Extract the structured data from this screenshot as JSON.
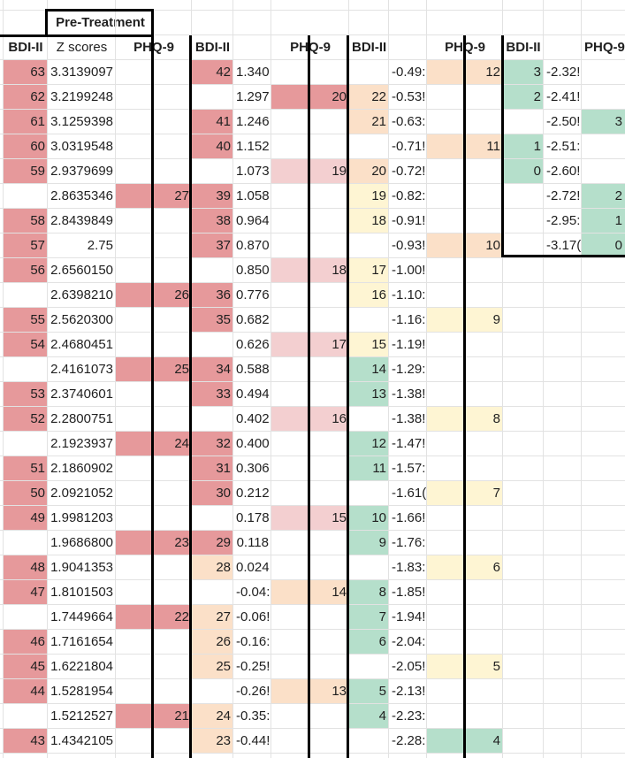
{
  "title": "Pre-Treatment",
  "headers": [
    "BDI-II",
    "Z scores",
    "PHQ-9",
    "BDI-II",
    "",
    "PHQ-9",
    "BDI-II",
    "",
    "PHQ-9",
    "BDI-II",
    "",
    "PHQ-9"
  ],
  "colors": {
    "dark_red": "#e6999b",
    "light_red": "#f3cfd0",
    "orange": "#fbe0c8",
    "yellow": "#fef5d3",
    "green": "#b5dfcb",
    "gridline": "#e2e2e2",
    "border": "#000000"
  },
  "rows": [
    [
      [
        "63",
        "r"
      ],
      [
        "3.3139097"
      ],
      [
        "",
        ""
      ],
      [
        "42",
        "r"
      ],
      [
        "1.340"
      ],
      [
        "",
        ""
      ],
      [
        "",
        ""
      ],
      [
        "-0.49:"
      ],
      [
        "12",
        "o"
      ],
      [
        "3",
        "g"
      ],
      [
        "-2.32!"
      ],
      [
        "",
        ""
      ]
    ],
    [
      [
        "62",
        "r"
      ],
      [
        "3.2199248"
      ],
      [
        "",
        ""
      ],
      [
        "",
        ""
      ],
      [
        "1.297"
      ],
      [
        "20",
        "r"
      ],
      [
        "22",
        "o"
      ],
      [
        "-0.53!"
      ],
      [
        "",
        ""
      ],
      [
        "2",
        "g"
      ],
      [
        "-2.41!"
      ],
      [
        "",
        ""
      ]
    ],
    [
      [
        "61",
        "r"
      ],
      [
        "3.1259398"
      ],
      [
        "",
        ""
      ],
      [
        "41",
        "r"
      ],
      [
        "1.246"
      ],
      [
        "",
        ""
      ],
      [
        "21",
        "o"
      ],
      [
        "-0.63:"
      ],
      [
        "",
        ""
      ],
      [
        "",
        ""
      ],
      [
        "-2.50!"
      ],
      [
        "3",
        "g"
      ]
    ],
    [
      [
        "60",
        "r"
      ],
      [
        "3.0319548"
      ],
      [
        "",
        ""
      ],
      [
        "40",
        "r"
      ],
      [
        "1.152"
      ],
      [
        "",
        ""
      ],
      [
        "",
        ""
      ],
      [
        "-0.71!"
      ],
      [
        "11",
        "o"
      ],
      [
        "1",
        "g"
      ],
      [
        "-2.51:"
      ],
      [
        "",
        ""
      ]
    ],
    [
      [
        "59",
        "r"
      ],
      [
        "2.9379699"
      ],
      [
        "",
        ""
      ],
      [
        "",
        ""
      ],
      [
        "1.073"
      ],
      [
        "19",
        "l"
      ],
      [
        "20",
        "o"
      ],
      [
        "-0.72!"
      ],
      [
        "",
        ""
      ],
      [
        "0",
        "g"
      ],
      [
        "-2.60!"
      ],
      [
        "",
        ""
      ]
    ],
    [
      [
        "",
        ""
      ],
      [
        "2.8635346"
      ],
      [
        "27",
        "r"
      ],
      [
        "39",
        "r"
      ],
      [
        "1.058"
      ],
      [
        "",
        ""
      ],
      [
        "19",
        "y"
      ],
      [
        "-0.82:"
      ],
      [
        "",
        ""
      ],
      [
        "",
        ""
      ],
      [
        "-2.72!"
      ],
      [
        "2",
        "g"
      ]
    ],
    [
      [
        "58",
        "r"
      ],
      [
        "2.8439849"
      ],
      [
        "",
        ""
      ],
      [
        "38",
        "r"
      ],
      [
        "0.964"
      ],
      [
        "",
        ""
      ],
      [
        "18",
        "y"
      ],
      [
        "-0.91!"
      ],
      [
        "",
        ""
      ],
      [
        "",
        ""
      ],
      [
        "-2.95:"
      ],
      [
        "1",
        "g"
      ]
    ],
    [
      [
        "57",
        "r"
      ],
      [
        "2.75"
      ],
      [
        "",
        ""
      ],
      [
        "37",
        "r"
      ],
      [
        "0.870"
      ],
      [
        "",
        ""
      ],
      [
        "",
        ""
      ],
      [
        "-0.93!"
      ],
      [
        "10",
        "o"
      ],
      [
        "",
        ""
      ],
      [
        "-3.17("
      ],
      [
        "0",
        "g"
      ]
    ],
    [
      [
        "56",
        "r"
      ],
      [
        "2.6560150"
      ],
      [
        "",
        ""
      ],
      [
        "",
        ""
      ],
      [
        "0.850"
      ],
      [
        "18",
        "l"
      ],
      [
        "17",
        "y"
      ],
      [
        "-1.00!"
      ],
      [
        "",
        ""
      ],
      [
        "",
        ""
      ],
      [
        "",
        ""
      ],
      [
        "",
        ""
      ]
    ],
    [
      [
        "",
        ""
      ],
      [
        "2.6398210"
      ],
      [
        "26",
        "r"
      ],
      [
        "36",
        "r"
      ],
      [
        "0.776"
      ],
      [
        "",
        ""
      ],
      [
        "16",
        "y"
      ],
      [
        "-1.10:"
      ],
      [
        "",
        ""
      ],
      [
        "",
        ""
      ],
      [
        "",
        ""
      ],
      [
        "",
        ""
      ]
    ],
    [
      [
        "55",
        "r"
      ],
      [
        "2.5620300"
      ],
      [
        "",
        ""
      ],
      [
        "35",
        "r"
      ],
      [
        "0.682"
      ],
      [
        "",
        ""
      ],
      [
        "",
        ""
      ],
      [
        "-1.16:"
      ],
      [
        "9",
        "y"
      ],
      [
        "",
        ""
      ],
      [
        "",
        ""
      ],
      [
        "",
        ""
      ]
    ],
    [
      [
        "54",
        "r"
      ],
      [
        "2.4680451"
      ],
      [
        "",
        ""
      ],
      [
        "",
        ""
      ],
      [
        "0.626"
      ],
      [
        "17",
        "l"
      ],
      [
        "15",
        "y"
      ],
      [
        "-1.19!"
      ],
      [
        "",
        ""
      ],
      [
        "",
        ""
      ],
      [
        "",
        ""
      ],
      [
        "",
        ""
      ]
    ],
    [
      [
        "",
        ""
      ],
      [
        "2.4161073"
      ],
      [
        "25",
        "r"
      ],
      [
        "34",
        "r"
      ],
      [
        "0.588"
      ],
      [
        "",
        ""
      ],
      [
        "14",
        "g"
      ],
      [
        "-1.29:"
      ],
      [
        "",
        ""
      ],
      [
        "",
        ""
      ],
      [
        "",
        ""
      ],
      [
        "",
        ""
      ]
    ],
    [
      [
        "53",
        "r"
      ],
      [
        "2.3740601"
      ],
      [
        "",
        ""
      ],
      [
        "33",
        "r"
      ],
      [
        "0.494"
      ],
      [
        "",
        ""
      ],
      [
        "13",
        "g"
      ],
      [
        "-1.38!"
      ],
      [
        "",
        ""
      ],
      [
        "",
        ""
      ],
      [
        "",
        ""
      ],
      [
        "",
        ""
      ]
    ],
    [
      [
        "52",
        "r"
      ],
      [
        "2.2800751"
      ],
      [
        "",
        ""
      ],
      [
        "",
        ""
      ],
      [
        "0.402"
      ],
      [
        "16",
        "l"
      ],
      [
        "",
        ""
      ],
      [
        "-1.38!"
      ],
      [
        "8",
        "y"
      ],
      [
        "",
        ""
      ],
      [
        "",
        ""
      ],
      [
        "",
        ""
      ]
    ],
    [
      [
        "",
        ""
      ],
      [
        "2.1923937"
      ],
      [
        "24",
        "r"
      ],
      [
        "32",
        "r"
      ],
      [
        "0.400"
      ],
      [
        "",
        ""
      ],
      [
        "12",
        "g"
      ],
      [
        "-1.47!"
      ],
      [
        "",
        ""
      ],
      [
        "",
        ""
      ],
      [
        "",
        ""
      ],
      [
        "",
        ""
      ]
    ],
    [
      [
        "51",
        "r"
      ],
      [
        "2.1860902"
      ],
      [
        "",
        ""
      ],
      [
        "31",
        "r"
      ],
      [
        "0.306"
      ],
      [
        "",
        ""
      ],
      [
        "11",
        "g"
      ],
      [
        "-1.57:"
      ],
      [
        "",
        ""
      ],
      [
        "",
        ""
      ],
      [
        "",
        ""
      ],
      [
        "",
        ""
      ]
    ],
    [
      [
        "50",
        "r"
      ],
      [
        "2.0921052"
      ],
      [
        "",
        ""
      ],
      [
        "30",
        "r"
      ],
      [
        "0.212"
      ],
      [
        "",
        ""
      ],
      [
        "",
        ""
      ],
      [
        "-1.61("
      ],
      [
        "7",
        "y"
      ],
      [
        "",
        ""
      ],
      [
        "",
        ""
      ],
      [
        "",
        ""
      ]
    ],
    [
      [
        "49",
        "r"
      ],
      [
        "1.9981203"
      ],
      [
        "",
        ""
      ],
      [
        "",
        ""
      ],
      [
        "0.178"
      ],
      [
        "15",
        "l"
      ],
      [
        "10",
        "g"
      ],
      [
        "-1.66!"
      ],
      [
        "",
        ""
      ],
      [
        "",
        ""
      ],
      [
        "",
        ""
      ],
      [
        "",
        ""
      ]
    ],
    [
      [
        "",
        ""
      ],
      [
        "1.9686800"
      ],
      [
        "23",
        "r"
      ],
      [
        "29",
        "r"
      ],
      [
        "0.118"
      ],
      [
        "",
        ""
      ],
      [
        "9",
        "g"
      ],
      [
        "-1.76:"
      ],
      [
        "",
        ""
      ],
      [
        "",
        ""
      ],
      [
        "",
        ""
      ],
      [
        "",
        ""
      ]
    ],
    [
      [
        "48",
        "r"
      ],
      [
        "1.9041353"
      ],
      [
        "",
        ""
      ],
      [
        "28",
        "o"
      ],
      [
        "0.024"
      ],
      [
        "",
        ""
      ],
      [
        "",
        ""
      ],
      [
        "-1.83:"
      ],
      [
        "6",
        "y"
      ],
      [
        "",
        ""
      ],
      [
        "",
        ""
      ],
      [
        "",
        ""
      ]
    ],
    [
      [
        "47",
        "r"
      ],
      [
        "1.8101503"
      ],
      [
        "",
        ""
      ],
      [
        "",
        ""
      ],
      [
        "-0.04:"
      ],
      [
        "14",
        "o"
      ],
      [
        "8",
        "g"
      ],
      [
        "-1.85!"
      ],
      [
        "",
        ""
      ],
      [
        "",
        ""
      ],
      [
        "",
        ""
      ],
      [
        "",
        ""
      ]
    ],
    [
      [
        "",
        ""
      ],
      [
        "1.7449664"
      ],
      [
        "22",
        "r"
      ],
      [
        "27",
        "o"
      ],
      [
        "-0.06!"
      ],
      [
        "",
        ""
      ],
      [
        "7",
        "g"
      ],
      [
        "-1.94!"
      ],
      [
        "",
        ""
      ],
      [
        "",
        ""
      ],
      [
        "",
        ""
      ],
      [
        "",
        ""
      ]
    ],
    [
      [
        "46",
        "r"
      ],
      [
        "1.7161654"
      ],
      [
        "",
        ""
      ],
      [
        "26",
        "o"
      ],
      [
        "-0.16:"
      ],
      [
        "",
        ""
      ],
      [
        "6",
        "g"
      ],
      [
        "-2.04:"
      ],
      [
        "",
        ""
      ],
      [
        "",
        ""
      ],
      [
        "",
        ""
      ],
      [
        "",
        ""
      ]
    ],
    [
      [
        "45",
        "r"
      ],
      [
        "1.6221804"
      ],
      [
        "",
        ""
      ],
      [
        "25",
        "o"
      ],
      [
        "-0.25!"
      ],
      [
        "",
        ""
      ],
      [
        "",
        ""
      ],
      [
        "-2.05!"
      ],
      [
        "5",
        "y"
      ],
      [
        "",
        ""
      ],
      [
        "",
        ""
      ],
      [
        "",
        ""
      ]
    ],
    [
      [
        "44",
        "r"
      ],
      [
        "1.5281954"
      ],
      [
        "",
        ""
      ],
      [
        "",
        ""
      ],
      [
        "-0.26!"
      ],
      [
        "13",
        "o"
      ],
      [
        "5",
        "g"
      ],
      [
        "-2.13!"
      ],
      [
        "",
        ""
      ],
      [
        "",
        ""
      ],
      [
        "",
        ""
      ],
      [
        "",
        ""
      ]
    ],
    [
      [
        "",
        ""
      ],
      [
        "1.5212527"
      ],
      [
        "21",
        "r"
      ],
      [
        "24",
        "o"
      ],
      [
        "-0.35:"
      ],
      [
        "",
        ""
      ],
      [
        "4",
        "g"
      ],
      [
        "-2.23:"
      ],
      [
        "",
        ""
      ],
      [
        "",
        ""
      ],
      [
        "",
        ""
      ],
      [
        "",
        ""
      ]
    ],
    [
      [
        "43",
        "r"
      ],
      [
        "1.4342105"
      ],
      [
        "",
        ""
      ],
      [
        "23",
        "o"
      ],
      [
        "-0.44!"
      ],
      [
        "",
        ""
      ],
      [
        "",
        ""
      ],
      [
        "-2.28:"
      ],
      [
        "4",
        "g"
      ],
      [
        "",
        ""
      ],
      [
        "",
        ""
      ],
      [
        "",
        ""
      ]
    ]
  ]
}
